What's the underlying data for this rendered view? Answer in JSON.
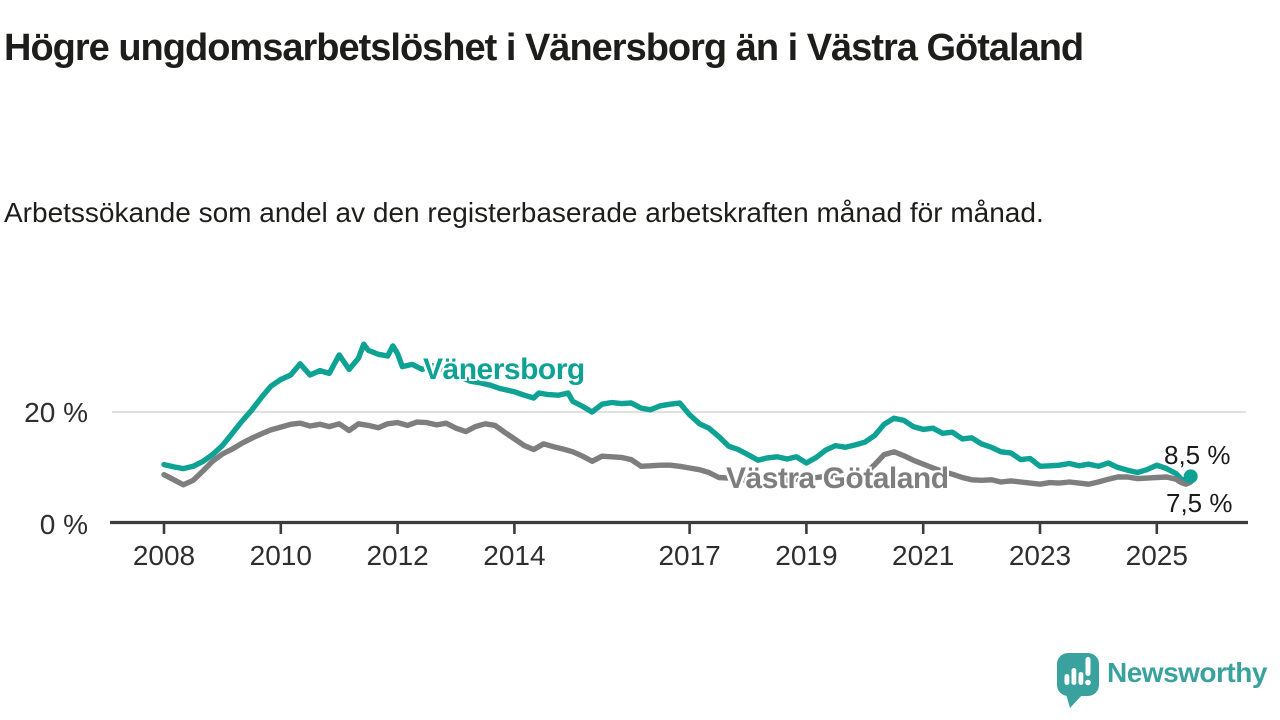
{
  "title": "Högre ungdomsarbetslöshet i Vänersborg än i Västra Götaland",
  "subtitle": "Arbetssökande som andel av den registerbaserade arbetskraften månad för månad.",
  "colors": {
    "vanersborg": "#0ea294",
    "vastra_gotaland": "#7e7e7e",
    "axis": "#3c3c3c",
    "gridline": "#d7d7d7",
    "text": "#1d1d1b",
    "logo": "#3aa29e"
  },
  "branding": {
    "logo_text": "Newsworthy",
    "logo_icon": "speech-bubble-bar-chart-exclamation"
  },
  "chart_data": {
    "type": "line",
    "title": "Högre ungdomsarbetslöshet i Vänersborg än i Västra Götaland",
    "subtitle": "Arbetssökande som andel av den registerbaserade arbetskraften månad för månad.",
    "xlabel": "",
    "ylabel": "Arbetssökande som andel av den registerbaserade arbetskraften (%)",
    "x_range": [
      2007.9,
      2025.8
    ],
    "y_range": [
      0,
      34
    ],
    "grid": "single horizontal gridline at 20 %",
    "y_gridline": 20,
    "x_ticks": [
      2008,
      2010,
      2012,
      2014,
      2017,
      2019,
      2021,
      2023,
      2025
    ],
    "y_ticks": [
      {
        "value": 0,
        "label": "0 %"
      },
      {
        "value": 20,
        "label": "20 %"
      }
    ],
    "legend_position": "inline labels on lines; latest value labels at right end",
    "series": [
      {
        "name": "Vänersborg",
        "color": "#0ea294",
        "end_label": "8,5 %",
        "end_value": 8.5,
        "end_marker": "dot",
        "points": [
          [
            2008.0,
            10.6
          ],
          [
            2008.17,
            10.2
          ],
          [
            2008.33,
            9.9
          ],
          [
            2008.5,
            10.3
          ],
          [
            2008.67,
            11.2
          ],
          [
            2008.83,
            12.4
          ],
          [
            2009.0,
            14.0
          ],
          [
            2009.17,
            16.2
          ],
          [
            2009.33,
            18.3
          ],
          [
            2009.5,
            20.3
          ],
          [
            2009.67,
            22.6
          ],
          [
            2009.83,
            24.6
          ],
          [
            2010.0,
            25.8
          ],
          [
            2010.17,
            26.6
          ],
          [
            2010.33,
            28.6
          ],
          [
            2010.5,
            26.6
          ],
          [
            2010.67,
            27.4
          ],
          [
            2010.83,
            26.9
          ],
          [
            2011.0,
            30.2
          ],
          [
            2011.17,
            27.6
          ],
          [
            2011.33,
            29.6
          ],
          [
            2011.42,
            32.1
          ],
          [
            2011.5,
            31.0
          ],
          [
            2011.67,
            30.3
          ],
          [
            2011.83,
            30.0
          ],
          [
            2011.92,
            31.8
          ],
          [
            2012.0,
            30.4
          ],
          [
            2012.08,
            28.1
          ],
          [
            2012.25,
            28.5
          ],
          [
            2012.42,
            27.6
          ],
          [
            2012.58,
            28.3
          ],
          [
            2012.75,
            27.6
          ],
          [
            2012.92,
            26.8
          ],
          [
            2013.08,
            26.2
          ],
          [
            2013.25,
            25.5
          ],
          [
            2013.42,
            25.2
          ],
          [
            2013.58,
            24.8
          ],
          [
            2013.75,
            24.2
          ],
          [
            2013.92,
            23.8
          ],
          [
            2014.0,
            23.6
          ],
          [
            2014.17,
            23.0
          ],
          [
            2014.33,
            22.5
          ],
          [
            2014.42,
            23.4
          ],
          [
            2014.58,
            23.1
          ],
          [
            2014.75,
            23.0
          ],
          [
            2014.92,
            23.4
          ],
          [
            2015.0,
            21.9
          ],
          [
            2015.17,
            21.0
          ],
          [
            2015.33,
            20.0
          ],
          [
            2015.5,
            21.4
          ],
          [
            2015.67,
            21.7
          ],
          [
            2015.83,
            21.5
          ],
          [
            2016.0,
            21.6
          ],
          [
            2016.17,
            20.7
          ],
          [
            2016.33,
            20.4
          ],
          [
            2016.5,
            21.1
          ],
          [
            2016.67,
            21.4
          ],
          [
            2016.83,
            21.6
          ],
          [
            2017.0,
            19.5
          ],
          [
            2017.17,
            17.9
          ],
          [
            2017.33,
            17.1
          ],
          [
            2017.5,
            15.6
          ],
          [
            2017.67,
            13.9
          ],
          [
            2017.83,
            13.3
          ],
          [
            2018.0,
            12.4
          ],
          [
            2018.17,
            11.4
          ],
          [
            2018.33,
            11.8
          ],
          [
            2018.5,
            12.0
          ],
          [
            2018.67,
            11.6
          ],
          [
            2018.83,
            12.0
          ],
          [
            2019.0,
            10.9
          ],
          [
            2019.17,
            11.9
          ],
          [
            2019.33,
            13.2
          ],
          [
            2019.5,
            14.0
          ],
          [
            2019.67,
            13.7
          ],
          [
            2019.83,
            14.1
          ],
          [
            2020.0,
            14.6
          ],
          [
            2020.17,
            15.8
          ],
          [
            2020.33,
            17.8
          ],
          [
            2020.5,
            18.9
          ],
          [
            2020.67,
            18.5
          ],
          [
            2020.83,
            17.4
          ],
          [
            2021.0,
            16.9
          ],
          [
            2021.17,
            17.1
          ],
          [
            2021.33,
            16.2
          ],
          [
            2021.5,
            16.4
          ],
          [
            2021.67,
            15.2
          ],
          [
            2021.83,
            15.4
          ],
          [
            2022.0,
            14.3
          ],
          [
            2022.17,
            13.7
          ],
          [
            2022.33,
            12.9
          ],
          [
            2022.5,
            12.7
          ],
          [
            2022.67,
            11.5
          ],
          [
            2022.83,
            11.7
          ],
          [
            2023.0,
            10.3
          ],
          [
            2023.17,
            10.4
          ],
          [
            2023.33,
            10.5
          ],
          [
            2023.5,
            10.8
          ],
          [
            2023.67,
            10.4
          ],
          [
            2023.83,
            10.7
          ],
          [
            2024.0,
            10.3
          ],
          [
            2024.17,
            10.9
          ],
          [
            2024.33,
            10.1
          ],
          [
            2024.5,
            9.6
          ],
          [
            2024.67,
            9.2
          ],
          [
            2024.83,
            9.7
          ],
          [
            2025.0,
            10.5
          ],
          [
            2025.17,
            9.9
          ],
          [
            2025.33,
            9.0
          ],
          [
            2025.42,
            8.0
          ],
          [
            2025.5,
            7.8
          ],
          [
            2025.58,
            8.5
          ]
        ]
      },
      {
        "name": "Västra Götaland",
        "color": "#7e7e7e",
        "end_label": "7,5 %",
        "end_value": 7.5,
        "end_marker": "none",
        "points": [
          [
            2008.0,
            8.8
          ],
          [
            2008.17,
            7.9
          ],
          [
            2008.33,
            7.0
          ],
          [
            2008.5,
            7.8
          ],
          [
            2008.67,
            9.5
          ],
          [
            2008.83,
            11.2
          ],
          [
            2009.0,
            12.5
          ],
          [
            2009.17,
            13.4
          ],
          [
            2009.33,
            14.4
          ],
          [
            2009.5,
            15.3
          ],
          [
            2009.67,
            16.1
          ],
          [
            2009.83,
            16.8
          ],
          [
            2010.0,
            17.3
          ],
          [
            2010.17,
            17.8
          ],
          [
            2010.33,
            18.0
          ],
          [
            2010.5,
            17.5
          ],
          [
            2010.67,
            17.8
          ],
          [
            2010.83,
            17.4
          ],
          [
            2011.0,
            17.9
          ],
          [
            2011.17,
            16.7
          ],
          [
            2011.33,
            17.9
          ],
          [
            2011.5,
            17.6
          ],
          [
            2011.67,
            17.2
          ],
          [
            2011.83,
            17.9
          ],
          [
            2012.0,
            18.1
          ],
          [
            2012.17,
            17.6
          ],
          [
            2012.33,
            18.2
          ],
          [
            2012.5,
            18.1
          ],
          [
            2012.67,
            17.7
          ],
          [
            2012.83,
            18.0
          ],
          [
            2013.0,
            17.1
          ],
          [
            2013.17,
            16.5
          ],
          [
            2013.33,
            17.4
          ],
          [
            2013.5,
            17.9
          ],
          [
            2013.67,
            17.6
          ],
          [
            2013.83,
            16.4
          ],
          [
            2014.0,
            15.2
          ],
          [
            2014.17,
            14.0
          ],
          [
            2014.33,
            13.3
          ],
          [
            2014.5,
            14.3
          ],
          [
            2014.67,
            13.8
          ],
          [
            2014.83,
            13.4
          ],
          [
            2015.0,
            12.9
          ],
          [
            2015.17,
            12.1
          ],
          [
            2015.33,
            11.2
          ],
          [
            2015.5,
            12.1
          ],
          [
            2015.67,
            12.0
          ],
          [
            2015.83,
            11.9
          ],
          [
            2016.0,
            11.5
          ],
          [
            2016.17,
            10.3
          ],
          [
            2016.33,
            10.4
          ],
          [
            2016.5,
            10.5
          ],
          [
            2016.67,
            10.5
          ],
          [
            2016.83,
            10.3
          ],
          [
            2017.0,
            10.0
          ],
          [
            2017.17,
            9.7
          ],
          [
            2017.33,
            9.2
          ],
          [
            2017.5,
            8.3
          ],
          [
            2017.67,
            8.2
          ],
          [
            2017.83,
            8.0
          ],
          [
            2018.0,
            7.8
          ],
          [
            2018.17,
            7.7
          ],
          [
            2018.33,
            7.9
          ],
          [
            2018.5,
            7.9
          ],
          [
            2018.67,
            7.8
          ],
          [
            2018.83,
            8.0
          ],
          [
            2019.0,
            8.1
          ],
          [
            2019.17,
            8.3
          ],
          [
            2019.33,
            8.5
          ],
          [
            2019.5,
            8.6
          ],
          [
            2019.67,
            8.4
          ],
          [
            2019.83,
            8.6
          ],
          [
            2020.0,
            9.0
          ],
          [
            2020.17,
            10.6
          ],
          [
            2020.33,
            12.4
          ],
          [
            2020.5,
            12.9
          ],
          [
            2020.67,
            12.2
          ],
          [
            2020.83,
            11.4
          ],
          [
            2021.0,
            10.7
          ],
          [
            2021.17,
            10.0
          ],
          [
            2021.33,
            9.4
          ],
          [
            2021.5,
            8.9
          ],
          [
            2021.67,
            8.3
          ],
          [
            2021.83,
            7.9
          ],
          [
            2022.0,
            7.8
          ],
          [
            2022.17,
            7.9
          ],
          [
            2022.33,
            7.5
          ],
          [
            2022.5,
            7.7
          ],
          [
            2022.67,
            7.5
          ],
          [
            2022.83,
            7.3
          ],
          [
            2023.0,
            7.1
          ],
          [
            2023.17,
            7.4
          ],
          [
            2023.33,
            7.3
          ],
          [
            2023.5,
            7.5
          ],
          [
            2023.67,
            7.3
          ],
          [
            2023.83,
            7.1
          ],
          [
            2024.0,
            7.5
          ],
          [
            2024.17,
            8.0
          ],
          [
            2024.33,
            8.4
          ],
          [
            2024.5,
            8.4
          ],
          [
            2024.67,
            8.1
          ],
          [
            2024.83,
            8.2
          ],
          [
            2025.0,
            8.3
          ],
          [
            2025.17,
            8.4
          ],
          [
            2025.33,
            8.0
          ],
          [
            2025.42,
            7.4
          ],
          [
            2025.5,
            7.1
          ],
          [
            2025.58,
            7.5
          ]
        ]
      }
    ]
  }
}
